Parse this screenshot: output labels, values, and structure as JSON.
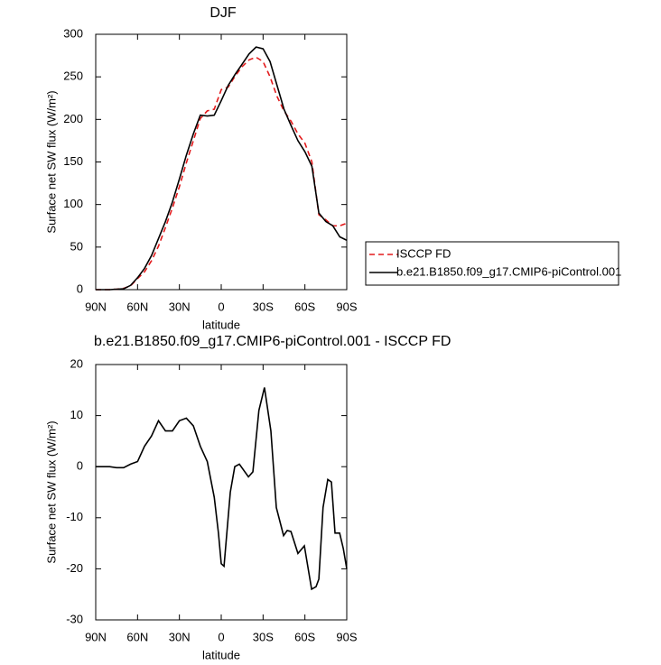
{
  "chart_data": [
    {
      "type": "line",
      "title": "DJF",
      "xlabel": "latitude",
      "ylabel": "Surface net SW flux (W/m²)",
      "x": [
        90,
        85,
        80,
        75,
        70,
        65,
        60,
        55,
        50,
        45,
        40,
        35,
        30,
        25,
        20,
        15,
        10,
        5,
        0,
        -5,
        -10,
        -15,
        -20,
        -25,
        -30,
        -35,
        -40,
        -45,
        -50,
        -55,
        -60,
        -65,
        -70,
        -75,
        -80,
        -85,
        -90
      ],
      "series": [
        {
          "name": "ISCCP FD",
          "color": "#e31a1c",
          "dashed": true,
          "values": [
            0,
            0,
            0,
            0.5,
            1.5,
            4.5,
            13,
            21,
            34,
            51,
            73,
            96,
            121,
            149,
            175,
            201,
            210,
            212,
            235,
            238,
            251,
            262,
            270,
            273,
            268,
            250,
            227,
            210,
            198,
            183,
            172,
            150,
            88,
            82,
            75,
            75,
            78
          ]
        },
        {
          "name": "b.e21.B1850.f09_g17.CMIP6-piControl.001",
          "color": "#000000",
          "dashed": false,
          "values": [
            0,
            0,
            0,
            0.5,
            1,
            5,
            14,
            25,
            40,
            60,
            80,
            103,
            130,
            158,
            183,
            205,
            204,
            205,
            222,
            240,
            253,
            265,
            277,
            285,
            283,
            268,
            240,
            212,
            193,
            175,
            162,
            145,
            90,
            80,
            75,
            62,
            58
          ]
        }
      ],
      "xlim": [
        90,
        -90
      ],
      "xticks": [
        {
          "value": 90,
          "label": "90N"
        },
        {
          "value": 60,
          "label": "60N"
        },
        {
          "value": 30,
          "label": "30N"
        },
        0,
        {
          "value": -30,
          "label": "30S"
        },
        {
          "value": -60,
          "label": "60S"
        },
        {
          "value": -90,
          "label": "90S"
        }
      ],
      "ylim": [
        0,
        300
      ],
      "yticks": [
        0,
        50,
        100,
        150,
        200,
        250,
        300
      ],
      "legend": "outside-right"
    },
    {
      "type": "line",
      "title": "b.e21.B1850.f09_g17.CMIP6-piControl.001 - ISCCP FD",
      "xlabel": "latitude",
      "ylabel": "Surface net SW flux (W/m²)",
      "x": [
        90,
        85,
        80,
        75,
        70,
        65,
        60,
        55,
        50,
        45,
        40,
        35,
        30,
        25,
        20,
        15,
        10,
        5,
        2,
        0,
        -2,
        -6.5,
        -9.7,
        -13,
        -19.5,
        -22.7,
        -27,
        -31,
        -35.6,
        -39.5,
        -44.7,
        -47.3,
        -50,
        -55,
        -59.6,
        -64.8,
        -68,
        -70,
        -73,
        -76.4,
        -79,
        -81.6,
        -84.9,
        -87.5,
        -90
      ],
      "color": "#000000",
      "values": [
        0,
        0,
        0,
        -0.2,
        -0.2,
        0.5,
        1,
        4,
        6,
        9,
        7,
        7,
        9,
        9.5,
        8,
        4,
        1,
        -6,
        -13,
        -19,
        -19.5,
        -5,
        0,
        0.5,
        -2,
        -1,
        11,
        15.5,
        7,
        -8,
        -13.5,
        -12.5,
        -12.7,
        -17,
        -15.5,
        -24,
        -23.5,
        -22,
        -8,
        -2.5,
        -3,
        -13,
        -13,
        -16,
        -20
      ],
      "xlim": [
        90,
        -90
      ],
      "xticks": [
        {
          "value": 90,
          "label": "90N"
        },
        {
          "value": 60,
          "label": "60N"
        },
        {
          "value": 30,
          "label": "30N"
        },
        0,
        {
          "value": -30,
          "label": "30S"
        },
        {
          "value": -60,
          "label": "60S"
        },
        {
          "value": -90,
          "label": "90S"
        }
      ],
      "ylim": [
        -30,
        20
      ],
      "yticks": [
        -30,
        -20,
        -10,
        0,
        10,
        20
      ]
    }
  ]
}
